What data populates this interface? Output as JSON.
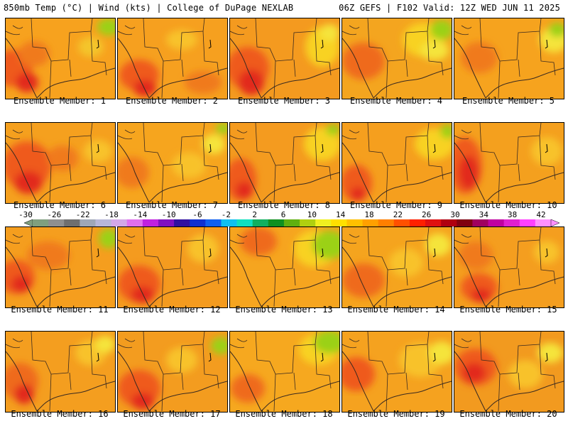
{
  "header": {
    "left": "850mb Temp (°C) | Wind (kts) | College of DuPage NEXLAB",
    "right": "06Z GEFS | F102 Valid: 12Z WED JUN 11 2025"
  },
  "members": [
    "Ensemble Member: 1",
    "Ensemble Member: 2",
    "Ensemble Member: 3",
    "Ensemble Member: 4",
    "Ensemble Member: 5",
    "Ensemble Member: 6",
    "Ensemble Member: 7",
    "Ensemble Member: 8",
    "Ensemble Member: 9",
    "Ensemble Member: 10",
    "Ensemble Member: 11",
    "Ensemble Member: 12",
    "Ensemble Member: 13",
    "Ensemble Member: 14",
    "Ensemble Member: 15",
    "Ensemble Member: 16",
    "Ensemble Member: 17",
    "Ensemble Member: 18",
    "Ensemble Member: 19",
    "Ensemble Member: 20"
  ],
  "colorbar": {
    "labels": [
      "-30",
      "-26",
      "-22",
      "-18",
      "-14",
      "-10",
      "-6",
      "-2",
      "2",
      "6",
      "10",
      "14",
      "18",
      "22",
      "26",
      "30",
      "34",
      "38",
      "42"
    ],
    "colors": [
      "#7f9f7f",
      "#8f8f8f",
      "#6f6f6f",
      "#9fa7b7",
      "#b7b7d7",
      "#d3a7e7",
      "#e06fef",
      "#c020e0",
      "#8010c0",
      "#3010a0",
      "#1030d0",
      "#1060f0",
      "#10c0f0",
      "#10e0c0",
      "#10b060",
      "#109020",
      "#60b010",
      "#b0d010",
      "#f0f020",
      "#ffe000",
      "#ffc000",
      "#ffa000",
      "#ff7f00",
      "#ff5000",
      "#ff2000",
      "#e01010",
      "#b00010",
      "#800010",
      "#a00060",
      "#c000a0",
      "#e020d0",
      "#ff40ff",
      "#ff90ff"
    ]
  },
  "temps": [
    {
      "base": "#f7a21e",
      "blobs": [
        [
          "#ef5a1f",
          10,
          70,
          28,
          26
        ],
        [
          "#e22a1c",
          30,
          90,
          16,
          14
        ],
        [
          "#f07a1f",
          40,
          50,
          22,
          18
        ],
        [
          "#9bd116",
          145,
          12,
          16,
          12
        ],
        [
          "#f4c52a",
          120,
          40,
          18,
          14
        ]
      ]
    },
    {
      "base": "#f6a01f",
      "blobs": [
        [
          "#ef5a1f",
          30,
          80,
          28,
          22
        ],
        [
          "#e22a1c",
          38,
          98,
          16,
          12
        ],
        [
          "#f8c22a",
          90,
          30,
          22,
          14
        ],
        [
          "#f07a1f",
          120,
          90,
          26,
          16
        ]
      ]
    },
    {
      "base": "#f49a1f",
      "blobs": [
        [
          "#ef5a1f",
          25,
          70,
          30,
          30
        ],
        [
          "#e22a1c",
          30,
          90,
          18,
          18
        ],
        [
          "#f8d224",
          130,
          40,
          24,
          28
        ],
        [
          "#f5e43a",
          140,
          20,
          14,
          12
        ]
      ]
    },
    {
      "base": "#f4a51f",
      "blobs": [
        [
          "#ef6a1f",
          30,
          60,
          30,
          26
        ],
        [
          "#f8d224",
          115,
          30,
          30,
          24
        ],
        [
          "#9bd116",
          140,
          16,
          16,
          14
        ],
        [
          "#f5e43a",
          130,
          45,
          20,
          14
        ]
      ]
    },
    {
      "base": "#f6a31e",
      "blobs": [
        [
          "#f07a1f",
          35,
          55,
          26,
          22
        ],
        [
          "#f5e43a",
          140,
          30,
          20,
          18
        ],
        [
          "#9bd116",
          145,
          16,
          12,
          10
        ]
      ]
    },
    {
      "base": "#f5a01e",
      "blobs": [
        [
          "#ef5a1f",
          30,
          60,
          34,
          34
        ],
        [
          "#e22a1c",
          32,
          84,
          20,
          16
        ],
        [
          "#f07a1f",
          80,
          50,
          22,
          18
        ],
        [
          "#f8c22a",
          130,
          40,
          20,
          16
        ]
      ]
    },
    {
      "base": "#f6a51e",
      "blobs": [
        [
          "#f07a1f",
          20,
          70,
          24,
          22
        ],
        [
          "#f8c22a",
          100,
          60,
          24,
          18
        ],
        [
          "#9bd116",
          148,
          8,
          10,
          8
        ],
        [
          "#f5e43a",
          135,
          30,
          16,
          14
        ]
      ]
    },
    {
      "base": "#f49b1f",
      "blobs": [
        [
          "#ef5a1f",
          15,
          80,
          22,
          30
        ],
        [
          "#e22a1c",
          20,
          95,
          12,
          12
        ],
        [
          "#f8d224",
          130,
          30,
          26,
          24
        ],
        [
          "#9bd116",
          145,
          10,
          10,
          8
        ]
      ]
    },
    {
      "base": "#f59f1e",
      "blobs": [
        [
          "#ef5a1f",
          20,
          85,
          22,
          26
        ],
        [
          "#e22a1c",
          22,
          100,
          10,
          10
        ],
        [
          "#f8d224",
          130,
          30,
          28,
          22
        ],
        [
          "#9bd116",
          148,
          12,
          10,
          10
        ]
      ]
    },
    {
      "base": "#f4a01e",
      "blobs": [
        [
          "#ef5a1f",
          15,
          60,
          24,
          40
        ],
        [
          "#e22a1c",
          20,
          70,
          14,
          24
        ],
        [
          "#f8c22a",
          130,
          40,
          22,
          20
        ]
      ]
    },
    {
      "base": "#f59e1e",
      "blobs": [
        [
          "#ef5a1f",
          15,
          70,
          26,
          24
        ],
        [
          "#e22a1c",
          22,
          80,
          14,
          12
        ],
        [
          "#f07a1f",
          60,
          40,
          30,
          20
        ],
        [
          "#9bd116",
          145,
          16,
          14,
          14
        ]
      ]
    },
    {
      "base": "#f49b1f",
      "blobs": [
        [
          "#ef5a1f",
          30,
          80,
          30,
          26
        ],
        [
          "#e22a1c",
          35,
          95,
          16,
          12
        ],
        [
          "#f8c22a",
          120,
          30,
          22,
          20
        ]
      ]
    },
    {
      "base": "#f6a51f",
      "blobs": [
        [
          "#ef6a1f",
          40,
          20,
          26,
          20
        ],
        [
          "#f8d224",
          120,
          30,
          30,
          26
        ],
        [
          "#9bd116",
          140,
          25,
          24,
          20
        ]
      ]
    },
    {
      "base": "#f5a41e",
      "blobs": [
        [
          "#ef6a1f",
          30,
          75,
          30,
          24
        ],
        [
          "#f8c22a",
          90,
          50,
          24,
          20
        ],
        [
          "#f5e43a",
          135,
          25,
          18,
          16
        ]
      ]
    },
    {
      "base": "#f49e1f",
      "blobs": [
        [
          "#ef5a1f",
          35,
          85,
          26,
          20
        ],
        [
          "#e22a1c",
          38,
          96,
          14,
          10
        ],
        [
          "#f07a1f",
          30,
          40,
          24,
          20
        ],
        [
          "#f8c22a",
          130,
          35,
          18,
          16
        ]
      ]
    },
    {
      "base": "#f49e1f",
      "blobs": [
        [
          "#ef6a1f",
          20,
          70,
          26,
          26
        ],
        [
          "#e22a1c",
          26,
          88,
          14,
          14
        ],
        [
          "#f8c22a",
          120,
          30,
          22,
          18
        ],
        [
          "#f5e43a",
          140,
          18,
          14,
          12
        ]
      ]
    },
    {
      "base": "#f39c1f",
      "blobs": [
        [
          "#ef5a1f",
          30,
          80,
          30,
          26
        ],
        [
          "#e22a1c",
          35,
          98,
          16,
          12
        ],
        [
          "#f8c22a",
          90,
          40,
          22,
          18
        ],
        [
          "#9bd116",
          145,
          20,
          14,
          12
        ]
      ]
    },
    {
      "base": "#f6a81f",
      "blobs": [
        [
          "#ef6a1f",
          25,
          80,
          24,
          20
        ],
        [
          "#f8d224",
          125,
          25,
          28,
          22
        ],
        [
          "#9bd116",
          140,
          15,
          22,
          16
        ]
      ]
    },
    {
      "base": "#f5a21f",
      "blobs": [
        [
          "#ef5a1f",
          20,
          60,
          26,
          24
        ],
        [
          "#f8c22a",
          110,
          40,
          30,
          24
        ],
        [
          "#f5e43a",
          140,
          30,
          18,
          16
        ]
      ]
    },
    {
      "base": "#f29a1f",
      "blobs": [
        [
          "#ef5a1f",
          30,
          50,
          30,
          26
        ],
        [
          "#e22a1c",
          28,
          58,
          16,
          14
        ],
        [
          "#f8c22a",
          100,
          60,
          24,
          20
        ],
        [
          "#f5e43a",
          135,
          30,
          18,
          14
        ]
      ]
    }
  ]
}
